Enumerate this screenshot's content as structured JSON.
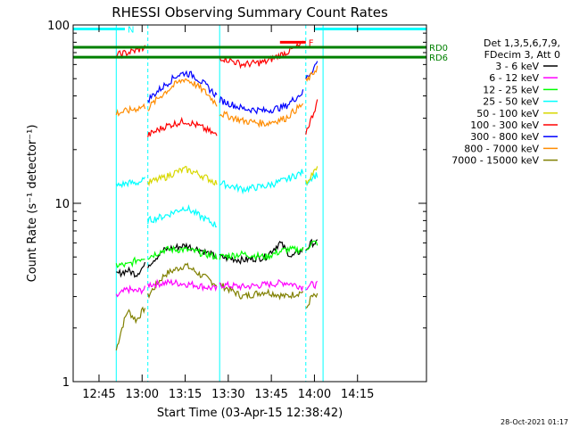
{
  "chart_data": {
    "type": "line",
    "title": "RHESSI Observing Summary Count Rates",
    "xlabel": "Start Time (03-Apr-15 12:38:42)",
    "ylabel": "Count Rate (s⁻¹ detector⁻¹)",
    "yscale": "log",
    "ylim": [
      1,
      100
    ],
    "xlim_minutes": [
      36,
      159
    ],
    "x_ticks": [
      {
        "label": "12:45",
        "min": 45
      },
      {
        "label": "13:00",
        "min": 60
      },
      {
        "label": "13:15",
        "min": 75
      },
      {
        "label": "13:30",
        "min": 90
      },
      {
        "label": "13:45",
        "min": 105
      },
      {
        "label": "14:00",
        "min": 120
      },
      {
        "label": "14:15",
        "min": 135
      }
    ],
    "y_tick_labels": [
      {
        "label": "1",
        "value": 1
      },
      {
        "label": "10",
        "value": 10
      },
      {
        "label": "100",
        "value": 100
      }
    ],
    "legend": {
      "placement": "right",
      "header": [
        "Det 1,3,5,6,7,9,",
        "FDecim 3, Att 0"
      ],
      "entries": [
        {
          "label": "3 - 6 keV",
          "color": "#000000"
        },
        {
          "label": "6 - 12 keV",
          "color": "#ff00ff"
        },
        {
          "label": "12 - 25 keV",
          "color": "#00ff00"
        },
        {
          "label": "25 - 50 keV",
          "color": "#00ffff"
        },
        {
          "label": "50 - 100 keV",
          "color": "#d8d800"
        },
        {
          "label": "100 - 300 keV",
          "color": "#ff0000"
        },
        {
          "label": "300 - 800 keV",
          "color": "#0000ff"
        },
        {
          "label": "800 - 7000 keV",
          "color": "#ff8c00"
        },
        {
          "label": "7000 - 15000 keV",
          "color": "#808000"
        }
      ]
    },
    "orbit_windows_min": [
      [
        51,
        62
      ],
      [
        87,
        117
      ],
      [
        123,
        159
      ]
    ],
    "series": [
      {
        "color": "#808000",
        "segments": [
          {
            "x": [
              51,
              55,
              58,
              61
            ],
            "y": [
              1.5,
              2.5,
              2.2,
              2.6
            ]
          },
          {
            "x": [
              62,
              68,
              75,
              80,
              86
            ],
            "y": [
              3.0,
              4.0,
              4.5,
              4.0,
              3.5
            ]
          },
          {
            "x": [
              87,
              95,
              103,
              110,
              116
            ],
            "y": [
              3.5,
              3.0,
              3.2,
              3.0,
              3.2
            ]
          },
          {
            "x": [
              117,
              119,
              121
            ],
            "y": [
              2.5,
              3.0,
              3.0
            ]
          }
        ]
      },
      {
        "color": "#ff00ff",
        "segments": [
          {
            "x": [
              51,
              55,
              58,
              61
            ],
            "y": [
              3.0,
              3.3,
              3.2,
              3.3
            ]
          },
          {
            "x": [
              62,
              70,
              78,
              86
            ],
            "y": [
              3.5,
              3.6,
              3.5,
              3.3
            ]
          },
          {
            "x": [
              87,
              95,
              103,
              110,
              116
            ],
            "y": [
              3.5,
              3.4,
              3.5,
              3.6,
              3.4
            ]
          },
          {
            "x": [
              117,
              119,
              121
            ],
            "y": [
              3.4,
              3.5,
              3.5
            ]
          }
        ]
      },
      {
        "color": "#000000",
        "segments": [
          {
            "x": [
              51,
              55,
              58,
              61
            ],
            "y": [
              4.0,
              4.2,
              4.0,
              4.5
            ]
          },
          {
            "x": [
              62,
              68,
              75,
              80,
              86
            ],
            "y": [
              4.5,
              5.5,
              5.8,
              5.5,
              5.0
            ]
          },
          {
            "x": [
              87,
              95,
              103,
              108,
              112,
              116
            ],
            "y": [
              5.0,
              4.8,
              5.0,
              6.0,
              5.0,
              5.5
            ]
          },
          {
            "x": [
              117,
              119,
              121
            ],
            "y": [
              5.5,
              6.0,
              6.0
            ]
          }
        ]
      },
      {
        "color": "#00ff00",
        "segments": [
          {
            "x": [
              51,
              55,
              58,
              61
            ],
            "y": [
              4.5,
              4.5,
              4.8,
              5.0
            ]
          },
          {
            "x": [
              62,
              68,
              75,
              80,
              86
            ],
            "y": [
              5.0,
              5.5,
              5.5,
              5.3,
              5.0
            ]
          },
          {
            "x": [
              87,
              95,
              103,
              110,
              116
            ],
            "y": [
              5.0,
              5.2,
              5.0,
              5.5,
              5.5
            ]
          },
          {
            "x": [
              117,
              119,
              121
            ],
            "y": [
              5.5,
              6.0,
              6.0
            ]
          }
        ]
      },
      {
        "color": "#00ffff",
        "segments": [
          {
            "x": [
              51,
              55,
              58,
              61
            ],
            "y": [
              12.5,
              13.0,
              13.0,
              13.5
            ]
          },
          {
            "x": [
              62,
              68,
              75,
              80,
              86
            ],
            "y": [
              8.0,
              8.5,
              9.5,
              8.5,
              7.5
            ]
          },
          {
            "x": [
              87,
              95,
              103,
              110,
              116
            ],
            "y": [
              13.0,
              12.0,
              12.5,
              13.5,
              15.0
            ]
          },
          {
            "x": [
              117,
              119,
              121
            ],
            "y": [
              13.0,
              14.0,
              14.5
            ]
          }
        ]
      },
      {
        "color": "#d8d800",
        "segments": [
          {
            "x": [
              62,
              68,
              72,
              75,
              78,
              82,
              86
            ],
            "y": [
              13.0,
              14.0,
              15.0,
              15.5,
              15.0,
              14.0,
              13.0
            ]
          },
          {
            "x": [
              117,
              119,
              121
            ],
            "y": [
              13.0,
              14.5,
              15.5
            ]
          }
        ]
      },
      {
        "color": "#ff0000",
        "segments": [
          {
            "x": [
              51,
              55,
              58,
              61
            ],
            "y": [
              68,
              70,
              72,
              75
            ]
          },
          {
            "x": [
              62,
              68,
              75,
              80,
              86
            ],
            "y": [
              24,
              27,
              29,
              27,
              24
            ]
          },
          {
            "x": [
              87,
              95,
              103,
              110,
              116
            ],
            "y": [
              66,
              60,
              62,
              70,
              78
            ]
          },
          {
            "x": [
              117,
              119,
              121
            ],
            "y": [
              25,
              30,
              37
            ]
          }
        ]
      },
      {
        "color": "#0000ff",
        "segments": [
          {
            "x": [
              62,
              68,
              72,
              75,
              78,
              82,
              86
            ],
            "y": [
              38,
              46,
              52,
              54,
              52,
              46,
              40
            ]
          },
          {
            "x": [
              87,
              95,
              103,
              110,
              116
            ],
            "y": [
              38,
              34,
              33,
              35,
              42
            ]
          },
          {
            "x": [
              117,
              119,
              121
            ],
            "y": [
              50,
              55,
              62
            ]
          }
        ]
      },
      {
        "color": "#ff8c00",
        "segments": [
          {
            "x": [
              51,
              55,
              58,
              61
            ],
            "y": [
              32,
              33,
              34,
              35
            ]
          },
          {
            "x": [
              62,
              68,
              72,
              75,
              78,
              82,
              86
            ],
            "y": [
              34,
              42,
              47,
              50,
              47,
              42,
              36
            ]
          },
          {
            "x": [
              87,
              95,
              103,
              110,
              116
            ],
            "y": [
              32,
              29,
              28,
              30,
              36
            ]
          },
          {
            "x": [
              117,
              119,
              121
            ],
            "y": [
              48,
              52,
              58
            ]
          }
        ]
      }
    ],
    "annotations": [
      {
        "label": "N",
        "color": "#00ffff",
        "x_min": [
          36,
          54
        ],
        "y": 95
      },
      {
        "label": "",
        "color": "#00ffff",
        "x_min": [
          120,
          159
        ],
        "y": 95
      },
      {
        "label": "F",
        "color": "#ff0000",
        "x_min": [
          108,
          117
        ],
        "y": 80
      },
      {
        "label": "RD0",
        "color": "#008000",
        "x_min": [
          36,
          159
        ],
        "y": 75
      },
      {
        "label": "RD6",
        "color": "#008000",
        "x_min": [
          36,
          159
        ],
        "y": 66
      }
    ],
    "timestamp": "28-Oct-2021 01:17"
  }
}
